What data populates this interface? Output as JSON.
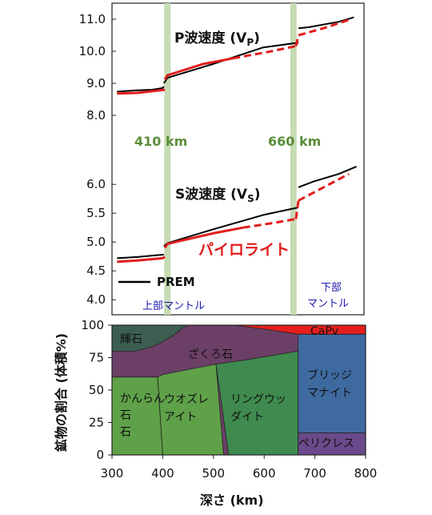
{
  "chart_data": [
    {
      "type": "line",
      "title": "P波速度 (V",
      "title_sub": "P",
      "title_close": ")",
      "yticks": [
        "8.0",
        "9.0",
        "10.0",
        "11.0"
      ],
      "ylim": [
        7.6,
        11.4
      ],
      "xlim": [
        300,
        800
      ],
      "series": [
        {
          "name": "PREM",
          "color": "#000000",
          "style": "solid",
          "segments": [
            {
              "x": [
                310,
                350,
                380,
                400,
                403
              ],
              "y": [
                8.74,
                8.78,
                8.8,
                8.85,
                8.9
              ]
            },
            {
              "x": [
                403,
                410,
                500,
                600,
                670
              ],
              "y": [
                9.0,
                9.17,
                9.6,
                10.12,
                10.27
              ]
            },
            {
              "x": [
                670,
                690,
                750,
                780
              ],
              "y": [
                10.72,
                10.75,
                10.92,
                11.06
              ]
            }
          ]
        },
        {
          "name": "パイロライト",
          "color": "#e11d1d",
          "style": "solid",
          "segments": [
            {
              "x": [
                310,
                350,
                395,
                405
              ],
              "y": [
                8.68,
                8.7,
                8.78,
                8.8
              ]
            },
            {
              "x": [
                405,
                410,
                480,
                540
              ],
              "y": [
                9.12,
                9.25,
                9.6,
                9.78
              ]
            }
          ]
        },
        {
          "name": "パイロライト (dashed)",
          "color": "#e11d1d",
          "style": "dashed",
          "segments": [
            {
              "x": [
                540,
                610,
                665
              ],
              "y": [
                9.78,
                9.98,
                10.16
              ]
            },
            {
              "x": [
                665,
                670
              ],
              "y": [
                10.16,
                10.5
              ]
            },
            {
              "x": [
                670,
                720,
                770
              ],
              "y": [
                10.5,
                10.72,
                10.98
              ]
            }
          ]
        }
      ],
      "annotations": [
        "410 km",
        "660 km"
      ]
    },
    {
      "type": "line",
      "title": "S波速度 (V",
      "title_sub": "S",
      "title_close": ")",
      "yticks": [
        "4.0",
        "4.5",
        "5.0",
        "5.5",
        "6.0"
      ],
      "ylim": [
        3.85,
        6.35
      ],
      "xlim": [
        300,
        800
      ],
      "series": [
        {
          "name": "PREM",
          "color": "#000000",
          "style": "solid",
          "segments": [
            {
              "x": [
                310,
                350,
                400,
                403
              ],
              "y": [
                4.72,
                4.74,
                4.78,
                4.78
              ]
            },
            {
              "x": [
                403,
                410,
                500,
                600,
                670
              ],
              "y": [
                4.93,
                4.98,
                5.22,
                5.47,
                5.6
              ]
            },
            {
              "x": [
                670,
                700,
                750,
                785
              ],
              "y": [
                5.95,
                6.05,
                6.18,
                6.31
              ]
            }
          ]
        },
        {
          "name": "パイロライト",
          "color": "#e11d1d",
          "style": "solid",
          "segments": [
            {
              "x": [
                310,
                350,
                400,
                405
              ],
              "y": [
                4.66,
                4.68,
                4.72,
                4.74
              ]
            },
            {
              "x": [
                405,
                410,
                500,
                560
              ],
              "y": [
                4.9,
                4.97,
                5.15,
                5.25
              ]
            }
          ]
        },
        {
          "name": "パイロライト (dashed)",
          "color": "#e11d1d",
          "style": "dashed",
          "segments": [
            {
              "x": [
                560,
                620,
                665
              ],
              "y": [
                5.25,
                5.33,
                5.4
              ]
            },
            {
              "x": [
                665,
                670
              ],
              "y": [
                5.4,
                5.72
              ]
            },
            {
              "x": [
                670,
                720,
                770
              ],
              "y": [
                5.72,
                5.95,
                6.18
              ]
            }
          ]
        }
      ],
      "legend": {
        "prem": "PREM",
        "pyrolite": "パイロライト"
      },
      "regions": {
        "upper": "上部マントル",
        "lower_1": "下部",
        "lower_2": "マントル"
      }
    },
    {
      "type": "area",
      "xlabel": "深さ (km)",
      "ylabel": "鉱物の割合 (体積%)",
      "xlim": [
        300,
        800
      ],
      "ylim": [
        0,
        100
      ],
      "xticks": [
        "300",
        "400",
        "500",
        "600",
        "700",
        "800"
      ],
      "yticks": [
        "0",
        "25",
        "50",
        "75",
        "100"
      ],
      "phases": [
        {
          "name": "輝石",
          "color": "#3b5e50",
          "boundary_x": [
            300,
            345,
            375,
            395,
            420,
            440,
            450
          ],
          "boundary_y": [
            80,
            80,
            83,
            86,
            92,
            98,
            100
          ]
        },
        {
          "name": "ざくろ石",
          "color": "#6b3f66",
          "boundary_x": [
            300,
            390,
            400,
            560,
            670
          ],
          "boundary_y": [
            60,
            60,
            62,
            73,
            80
          ]
        },
        {
          "name": "CaPv",
          "color": "#e61e1e",
          "range": [
            667,
            800
          ],
          "top_band": [
            93,
            100
          ]
        },
        {
          "name": "かんらん石",
          "lines": [
            "かんらん",
            "石"
          ],
          "color": "#5fa148",
          "range": [
            300,
            400
          ]
        },
        {
          "name": "ウオズレアイト",
          "lines": [
            "ウオズレ",
            "アイト"
          ],
          "color": "#5fa148",
          "range": [
            400,
            520
          ]
        },
        {
          "name": "リングウッダイト",
          "lines": [
            "リングウッ",
            "ダイト"
          ],
          "color": "#3f8a4e",
          "range": [
            520,
            667
          ]
        },
        {
          "name": "ブリッジマナイト",
          "lines": [
            "ブリッジ",
            "マナイト"
          ],
          "color": "#3f6aa0",
          "range": [
            667,
            800
          ]
        },
        {
          "name": "ペリクレス",
          "color": "#6a4a8a",
          "range": [
            667,
            800
          ],
          "band": [
            0,
            17
          ]
        }
      ]
    }
  ],
  "colors": {
    "prem": "#000000",
    "pyrolite": "#e11d1d",
    "transition_band": "#c6dcb4",
    "region_text": "#1a1ab0",
    "marker_text": "#5b8c3a"
  }
}
